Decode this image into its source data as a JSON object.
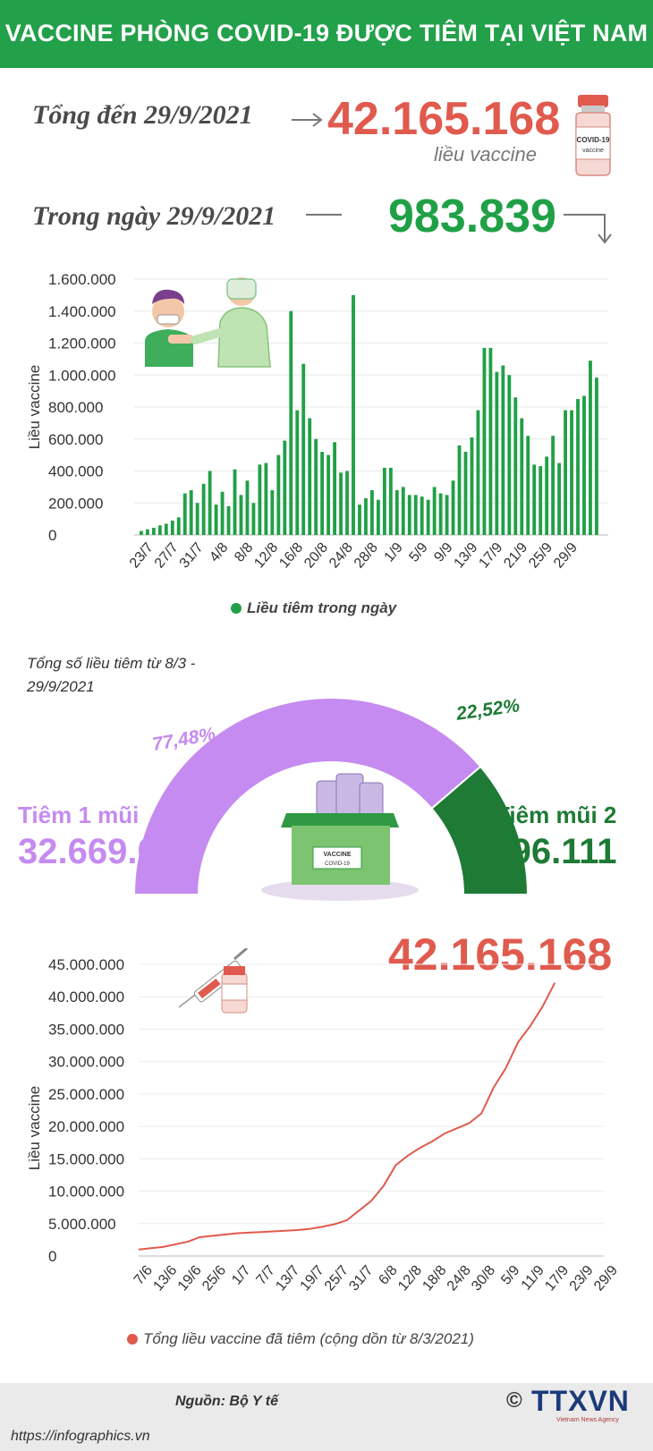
{
  "header": {
    "title": "VACCINE PHÒNG COVID-19 ĐƯỢC TIÊM TẠI VIỆT NAM"
  },
  "summary": {
    "total_label": "Tổng đến 29/9/2021",
    "total_value": "42.165.168",
    "total_unit": "liều vaccine",
    "day_label": "Trong ngày 29/9/2021",
    "day_value": "983.839",
    "vial_label_1": "COVID-19",
    "vial_label_2": "vaccine"
  },
  "colors": {
    "green": "#20a046",
    "red": "#e05a4e",
    "purple": "#c58bf0",
    "dark_green": "#1e7a35"
  },
  "chart_data": [
    {
      "type": "bar",
      "ylabel": "Liều vaccine",
      "ylim": [
        0,
        1600000
      ],
      "yticks": [
        "1.600.000",
        "1.400.000",
        "1.200.000",
        "1.000.000",
        "800.000",
        "600.000",
        "400.000",
        "200.000",
        "0"
      ],
      "start_date": "2021-07-21",
      "tick_labels": [
        "23/7",
        "27/7",
        "31/7",
        "4/8",
        "8/8",
        "12/8",
        "16/8",
        "20/8",
        "24/8",
        "28/8",
        "1/9",
        "5/9",
        "9/9",
        "13/9",
        "17/9",
        "21/9",
        "25/9",
        "29/9"
      ],
      "grid": true,
      "series": [
        {
          "name": "Liều tiêm trong ngày",
          "color": "#20a046",
          "values": [
            25000,
            35000,
            45000,
            60000,
            70000,
            90000,
            110000,
            260000,
            280000,
            200000,
            320000,
            400000,
            190000,
            270000,
            180000,
            410000,
            250000,
            340000,
            200000,
            440000,
            450000,
            280000,
            500000,
            590000,
            1400000,
            780000,
            1070000,
            730000,
            600000,
            520000,
            500000,
            580000,
            390000,
            400000,
            1500000,
            190000,
            230000,
            280000,
            220000,
            420000,
            420000,
            280000,
            300000,
            250000,
            250000,
            240000,
            220000,
            300000,
            260000,
            250000,
            340000,
            560000,
            520000,
            610000,
            780000,
            1170000,
            1170000,
            1020000,
            1060000,
            1000000,
            860000,
            730000,
            620000,
            440000,
            430000,
            490000,
            620000,
            450000,
            780000,
            780000,
            850000,
            870000,
            1090000,
            983839
          ]
        }
      ]
    },
    {
      "type": "pie",
      "title": "Tổng số liều tiêm từ 8/3 - 29/9/2021",
      "slices": [
        {
          "name": "Tiêm 1 mũi",
          "value": 32669057,
          "value_text": "32.669.057",
          "percent": 77.48,
          "percent_text": "77,48%",
          "color": "#c58bf0"
        },
        {
          "name": "Tiêm mũi 2",
          "value": 9496111,
          "value_text": "9.496.111",
          "percent": 22.52,
          "percent_text": "22,52%",
          "color": "#1e7a35"
        }
      ],
      "box_label_1": "VACCINE",
      "box_label_2": "COVID-19"
    },
    {
      "type": "line",
      "ylabel": "Liều vaccine",
      "ylim": [
        0,
        45000000
      ],
      "yticks": [
        "45.000.000",
        "40.000.000",
        "35.000.000",
        "30.000.000",
        "25.000.000",
        "20.000.000",
        "15.000.000",
        "10.000.000",
        "5.000.000",
        "0"
      ],
      "tick_labels": [
        "7/6",
        "13/6",
        "19/6",
        "25/6",
        "1/7",
        "7/7",
        "13/7",
        "19/7",
        "25/7",
        "31/7",
        "6/8",
        "12/8",
        "18/8",
        "24/8",
        "30/8",
        "5/9",
        "11/9",
        "17/9",
        "23/9",
        "29/9"
      ],
      "headline_value": "42.165.168",
      "grid": true,
      "series": [
        {
          "name": "Tổng liều vaccine đã tiêm (cộng dồn từ 8/3/2021)",
          "color": "#e05a4e",
          "points": [
            [
              0,
              1000000
            ],
            [
              6,
              1400000
            ],
            [
              9,
              1800000
            ],
            [
              12,
              2200000
            ],
            [
              15,
              2900000
            ],
            [
              18,
              3100000
            ],
            [
              21,
              3300000
            ],
            [
              24,
              3500000
            ],
            [
              27,
              3600000
            ],
            [
              30,
              3700000
            ],
            [
              33,
              3800000
            ],
            [
              36,
              3900000
            ],
            [
              39,
              4000000
            ],
            [
              42,
              4200000
            ],
            [
              45,
              4500000
            ],
            [
              48,
              4900000
            ],
            [
              51,
              5500000
            ],
            [
              54,
              7000000
            ],
            [
              57,
              8500000
            ],
            [
              60,
              10800000
            ],
            [
              63,
              14000000
            ],
            [
              66,
              15500000
            ],
            [
              69,
              16700000
            ],
            [
              72,
              17700000
            ],
            [
              75,
              18900000
            ],
            [
              78,
              19700000
            ],
            [
              81,
              20500000
            ],
            [
              84,
              22000000
            ],
            [
              87,
              26000000
            ],
            [
              90,
              29000000
            ],
            [
              93,
              33000000
            ],
            [
              96,
              35500000
            ],
            [
              99,
              38500000
            ],
            [
              102,
              42165168
            ]
          ]
        }
      ]
    }
  ],
  "footer": {
    "source": "Nguồn: Bộ Y tế",
    "url": "https://infographics.vn",
    "brand": "TTXVN",
    "brand_sub": "Vietnam News Agency",
    "copyright": "©"
  }
}
